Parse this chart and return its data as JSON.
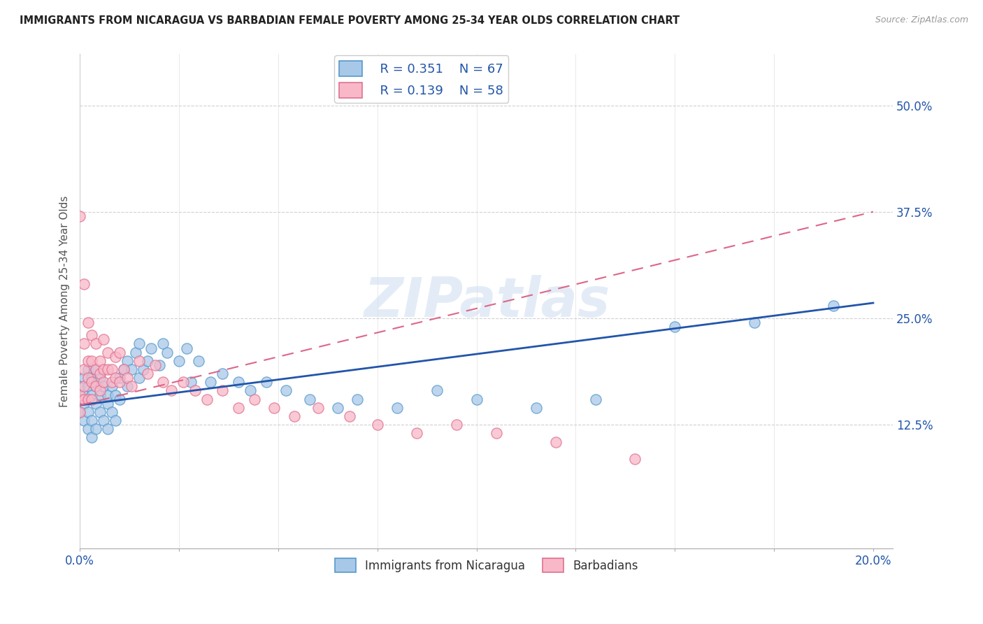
{
  "title": "IMMIGRANTS FROM NICARAGUA VS BARBADIAN FEMALE POVERTY AMONG 25-34 YEAR OLDS CORRELATION CHART",
  "source": "Source: ZipAtlas.com",
  "ylabel": "Female Poverty Among 25-34 Year Olds",
  "ytick_vals": [
    0.125,
    0.25,
    0.375,
    0.5
  ],
  "ytick_labels": [
    "12.5%",
    "25.0%",
    "37.5%",
    "50.0%"
  ],
  "xlim": [
    0.0,
    0.205
  ],
  "ylim": [
    -0.02,
    0.56
  ],
  "blue_color": "#a8c8e8",
  "blue_edge_color": "#5599cc",
  "pink_color": "#f8b8c8",
  "pink_edge_color": "#e07090",
  "blue_line_color": "#2255aa",
  "pink_line_color": "#dd6688",
  "watermark": "ZIPatlas",
  "legend1": "Immigrants from Nicaragua",
  "legend2": "Barbadians",
  "blue_scatter_x": [
    0.0,
    0.0,
    0.0,
    0.001,
    0.001,
    0.001,
    0.001,
    0.002,
    0.002,
    0.002,
    0.002,
    0.003,
    0.003,
    0.003,
    0.003,
    0.004,
    0.004,
    0.004,
    0.004,
    0.005,
    0.005,
    0.005,
    0.006,
    0.006,
    0.007,
    0.007,
    0.007,
    0.008,
    0.008,
    0.009,
    0.009,
    0.01,
    0.01,
    0.011,
    0.012,
    0.012,
    0.013,
    0.014,
    0.015,
    0.015,
    0.016,
    0.017,
    0.018,
    0.02,
    0.021,
    0.022,
    0.025,
    0.027,
    0.028,
    0.03,
    0.033,
    0.036,
    0.04,
    0.043,
    0.047,
    0.052,
    0.058,
    0.065,
    0.07,
    0.08,
    0.09,
    0.1,
    0.115,
    0.13,
    0.15,
    0.17,
    0.19
  ],
  "blue_scatter_y": [
    0.155,
    0.17,
    0.14,
    0.16,
    0.18,
    0.13,
    0.15,
    0.17,
    0.12,
    0.19,
    0.14,
    0.16,
    0.13,
    0.18,
    0.11,
    0.15,
    0.17,
    0.12,
    0.19,
    0.16,
    0.14,
    0.18,
    0.13,
    0.17,
    0.15,
    0.16,
    0.12,
    0.17,
    0.14,
    0.16,
    0.13,
    0.155,
    0.18,
    0.19,
    0.17,
    0.2,
    0.19,
    0.21,
    0.18,
    0.22,
    0.19,
    0.2,
    0.215,
    0.195,
    0.22,
    0.21,
    0.2,
    0.215,
    0.175,
    0.2,
    0.175,
    0.185,
    0.175,
    0.165,
    0.175,
    0.165,
    0.155,
    0.145,
    0.155,
    0.145,
    0.165,
    0.155,
    0.145,
    0.155,
    0.24,
    0.245,
    0.265
  ],
  "pink_scatter_x": [
    0.0,
    0.0,
    0.0,
    0.0,
    0.001,
    0.001,
    0.001,
    0.001,
    0.001,
    0.002,
    0.002,
    0.002,
    0.002,
    0.003,
    0.003,
    0.003,
    0.003,
    0.004,
    0.004,
    0.004,
    0.005,
    0.005,
    0.005,
    0.006,
    0.006,
    0.006,
    0.007,
    0.007,
    0.008,
    0.008,
    0.009,
    0.009,
    0.01,
    0.01,
    0.011,
    0.012,
    0.013,
    0.015,
    0.017,
    0.019,
    0.021,
    0.023,
    0.026,
    0.029,
    0.032,
    0.036,
    0.04,
    0.044,
    0.049,
    0.054,
    0.06,
    0.068,
    0.075,
    0.085,
    0.095,
    0.105,
    0.12,
    0.14
  ],
  "pink_scatter_y": [
    0.155,
    0.16,
    0.14,
    0.37,
    0.22,
    0.19,
    0.17,
    0.155,
    0.29,
    0.2,
    0.18,
    0.155,
    0.245,
    0.23,
    0.2,
    0.175,
    0.155,
    0.22,
    0.19,
    0.17,
    0.2,
    0.185,
    0.165,
    0.225,
    0.19,
    0.175,
    0.21,
    0.19,
    0.19,
    0.175,
    0.205,
    0.18,
    0.175,
    0.21,
    0.19,
    0.18,
    0.17,
    0.2,
    0.185,
    0.195,
    0.175,
    0.165,
    0.175,
    0.165,
    0.155,
    0.165,
    0.145,
    0.155,
    0.145,
    0.135,
    0.145,
    0.135,
    0.125,
    0.115,
    0.125,
    0.115,
    0.105,
    0.085
  ],
  "blue_line_x": [
    0.0,
    0.2
  ],
  "blue_line_y": [
    0.148,
    0.268
  ],
  "pink_line_x": [
    0.0,
    0.2
  ],
  "pink_line_y": [
    0.148,
    0.375
  ]
}
